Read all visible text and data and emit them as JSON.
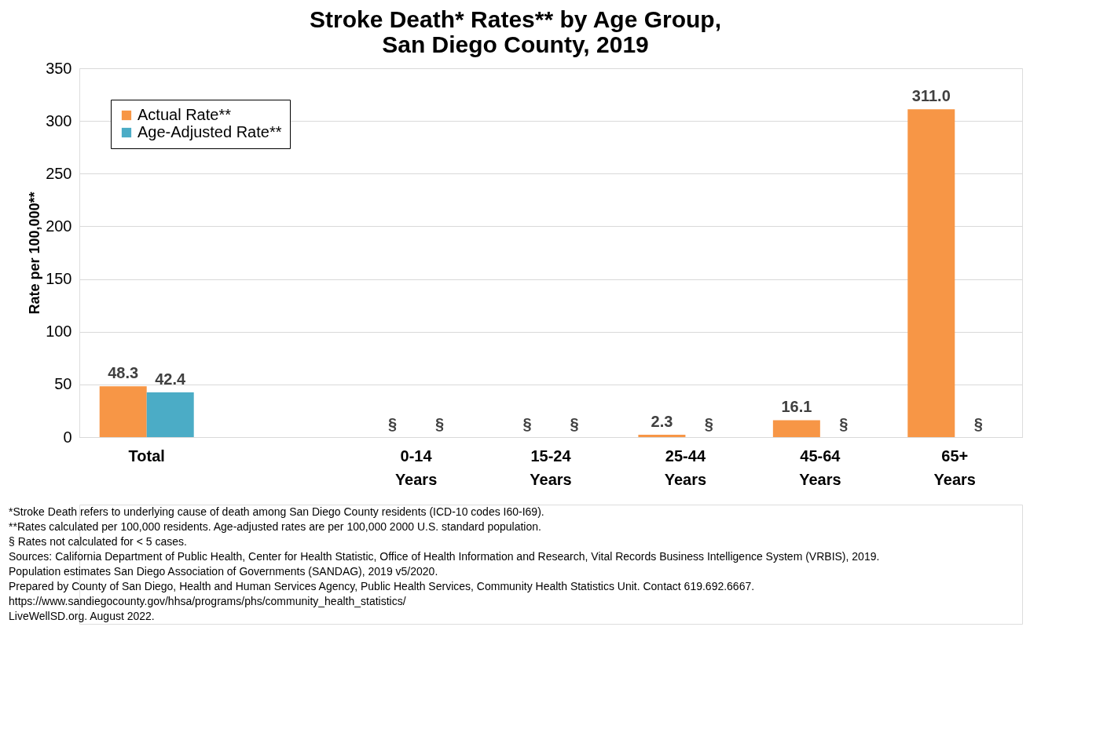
{
  "chart_data": {
    "type": "bar",
    "title": [
      "Stroke Death* Rates** by Age Group,",
      "San Diego County, 2019"
    ],
    "ylabel": "Rate per 100,000**",
    "categories": [
      "Total",
      null,
      "0-14 Years",
      "15-24 Years",
      "25-44 Years",
      "45-64 Years",
      "65+ Years"
    ],
    "series": [
      {
        "name": "Actual Rate**",
        "color": "#f79646",
        "values": [
          48.3,
          null,
          null,
          null,
          2.3,
          16.1,
          311.0
        ],
        "value_labels": [
          "48.3",
          null,
          "§",
          "§",
          "2.3",
          "16.1",
          "311.0"
        ]
      },
      {
        "name": "Age-Adjusted Rate**",
        "color": "#4bacc6",
        "values": [
          42.4,
          null,
          null,
          null,
          null,
          null,
          null
        ],
        "value_labels": [
          "42.4",
          null,
          "§",
          "§",
          "§",
          "§",
          "§"
        ]
      }
    ],
    "ylim": [
      0,
      350
    ],
    "yticks": [
      0,
      50,
      100,
      150,
      200,
      250,
      300,
      350
    ],
    "grid": "y",
    "legend": "top left",
    "annotations": [
      "*Stroke Death refers to underlying cause of death among San Diego County residents (ICD-10 codes I60-I69).",
      "**Rates calculated per 100,000 residents. Age-adjusted rates are per 100,000 2000 U.S. standard population.",
      "§ Rates not calculated for < 5 cases.",
      "Sources: California Department of Public Health, Center for Health Statistic, Office of Health Information and Research, Vital Records Business Intelligence System (VRBIS), 2019.",
      "Population estimates San Diego Association of Governments (SANDAG), 2019 v5/2020.",
      "Prepared by County of San Diego, Health and Human Services Agency, Public Health Services, Community Health Statistics Unit. Contact 619.692.6667.",
      "https://www.sandiegocounty.gov/hhsa/programs/phs/community_health_statistics/",
      "LiveWellSD.org. August 2022."
    ]
  }
}
